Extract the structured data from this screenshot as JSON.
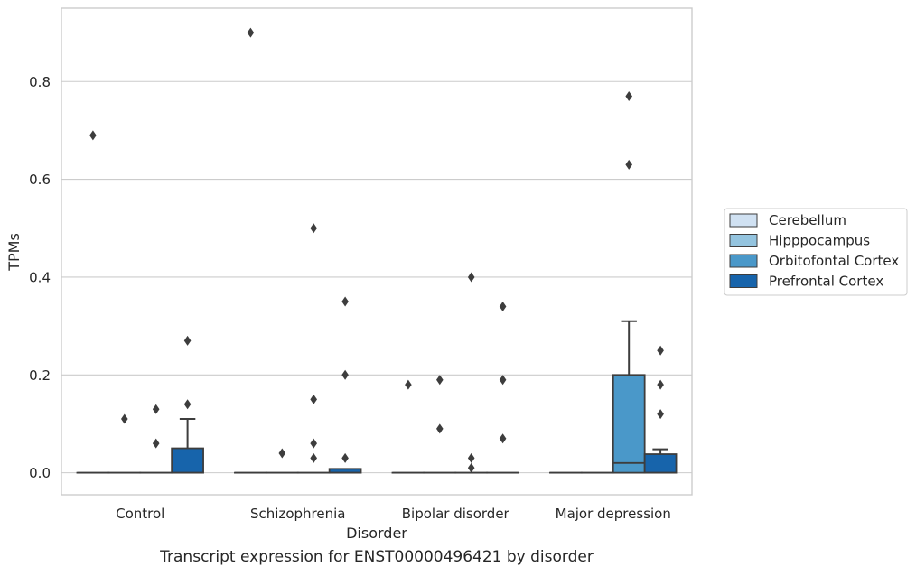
{
  "chart_data": {
    "type": "box",
    "xlabel": "Disorder",
    "ylabel": "TPMs",
    "caption": "Transcript expression for ENST00000496421 by disorder",
    "categories": [
      "Control",
      "Schizophrenia",
      "Bipolar disorder",
      "Major depression"
    ],
    "ylim": [
      -0.045,
      0.95
    ],
    "yticks": [
      {
        "value": 0.0,
        "label": "0.0"
      },
      {
        "value": 0.2,
        "label": "0.2"
      },
      {
        "value": 0.4,
        "label": "0.4"
      },
      {
        "value": 0.6,
        "label": "0.6"
      },
      {
        "value": 0.8,
        "label": "0.8"
      }
    ],
    "grid": "horizontal",
    "legend_position": "outside-right",
    "series": [
      {
        "name": "Cerebellum",
        "color": "#d0e1f2",
        "boxes": [
          {
            "q1": 0,
            "median": 0,
            "q3": 0,
            "whislo": 0,
            "whishi": 0,
            "fliers": [
              0.69
            ]
          },
          {
            "q1": 0,
            "median": 0,
            "q3": 0,
            "whislo": 0,
            "whishi": 0,
            "fliers": [
              0.9
            ]
          },
          {
            "q1": 0,
            "median": 0,
            "q3": 0,
            "whislo": 0,
            "whishi": 0,
            "fliers": [
              0.18
            ]
          },
          {
            "q1": 0,
            "median": 0,
            "q3": 0,
            "whislo": 0,
            "whishi": 0,
            "fliers": []
          }
        ]
      },
      {
        "name": "Hipppocampus",
        "color": "#94c4df",
        "boxes": [
          {
            "q1": 0,
            "median": 0,
            "q3": 0,
            "whislo": 0,
            "whishi": 0,
            "fliers": [
              0.11
            ]
          },
          {
            "q1": 0,
            "median": 0,
            "q3": 0,
            "whislo": 0,
            "whishi": 0,
            "fliers": [
              0.04
            ]
          },
          {
            "q1": 0,
            "median": 0,
            "q3": 0,
            "whislo": 0,
            "whishi": 0,
            "fliers": [
              0.19,
              0.09
            ]
          },
          {
            "q1": 0,
            "median": 0,
            "q3": 0,
            "whislo": 0,
            "whishi": 0,
            "fliers": []
          }
        ]
      },
      {
        "name": "Orbitofontal Cortex",
        "color": "#4a98c9",
        "boxes": [
          {
            "q1": 0,
            "median": 0,
            "q3": 0,
            "whislo": 0,
            "whishi": 0,
            "fliers": [
              0.13,
              0.06
            ]
          },
          {
            "q1": 0,
            "median": 0,
            "q3": 0,
            "whislo": 0,
            "whishi": 0,
            "fliers": [
              0.5,
              0.15,
              0.06,
              0.03
            ]
          },
          {
            "q1": 0,
            "median": 0,
            "q3": 0,
            "whislo": 0,
            "whishi": 0,
            "fliers": [
              0.4,
              0.03,
              0.01
            ]
          },
          {
            "q1": 0,
            "median": 0.02,
            "q3": 0.2,
            "whislo": 0,
            "whishi": 0.31,
            "fliers": [
              0.77,
              0.63
            ]
          }
        ]
      },
      {
        "name": "Prefrontal Cortex",
        "color": "#1764ab",
        "boxes": [
          {
            "q1": 0,
            "median": 0,
            "q3": 0.05,
            "whislo": 0,
            "whishi": 0.11,
            "fliers": [
              0.27,
              0.14
            ]
          },
          {
            "q1": 0,
            "median": 0,
            "q3": 0.008,
            "whislo": 0,
            "whishi": 0.008,
            "fliers": [
              0.35,
              0.2,
              0.03
            ]
          },
          {
            "q1": 0,
            "median": 0,
            "q3": 0,
            "whislo": 0,
            "whishi": 0,
            "fliers": [
              0.34,
              0.19,
              0.07
            ]
          },
          {
            "q1": 0,
            "median": 0,
            "q3": 0.038,
            "whislo": 0,
            "whishi": 0.048,
            "fliers": [
              0.25,
              0.18,
              0.12
            ]
          }
        ]
      }
    ]
  }
}
